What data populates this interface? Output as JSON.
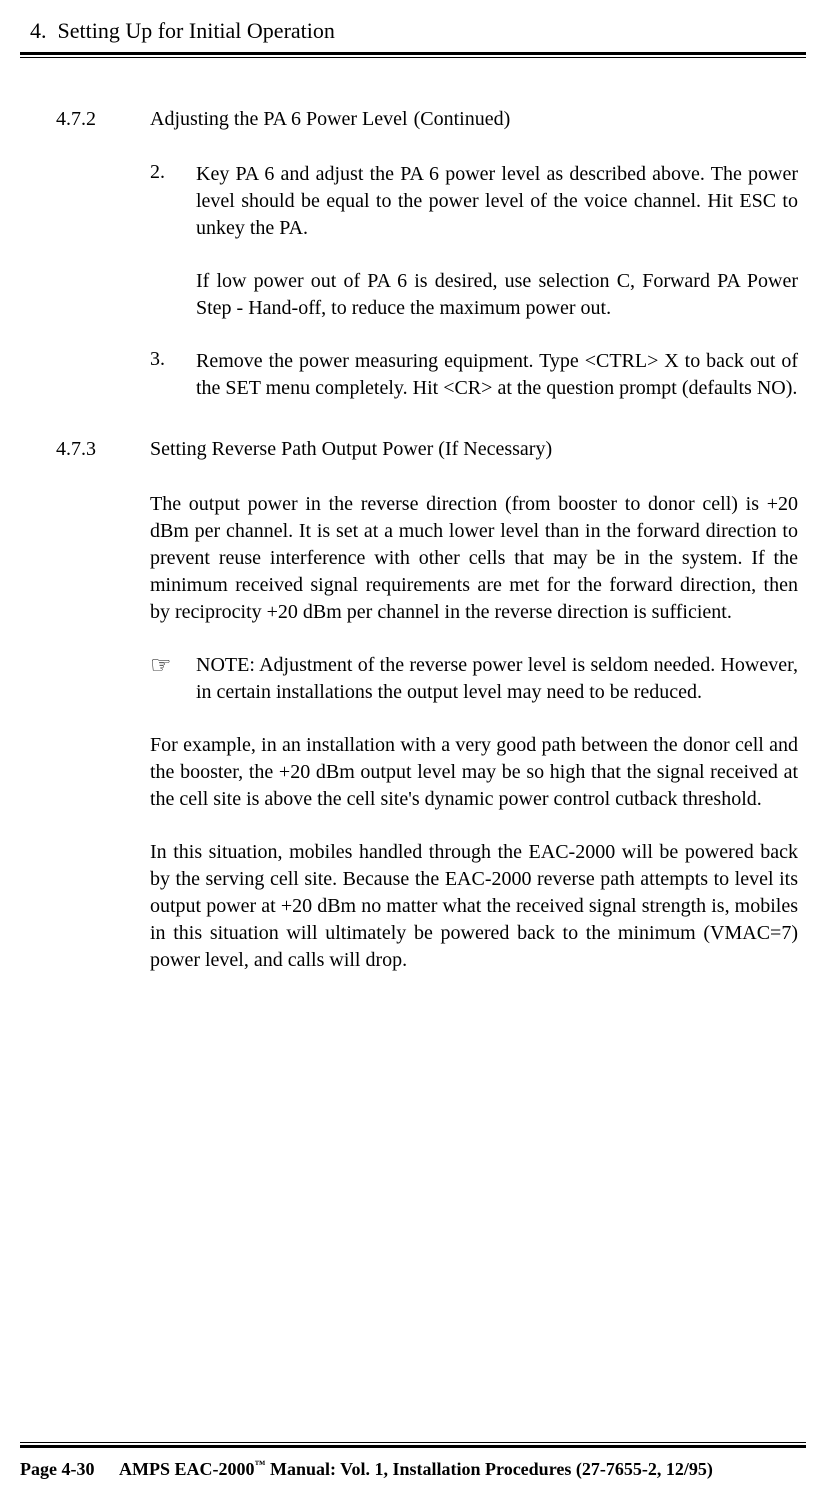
{
  "chapter": {
    "num": "4.",
    "title": "Setting Up for Initial Operation"
  },
  "section_472": {
    "num": "4.7.2",
    "title": "Adjusting the PA 6 Power Level",
    "continued": "(Continued)",
    "items": {
      "2": {
        "num": "2.",
        "p1a": "Key PA 6 and adjust the PA 6 power level as described above. The power level should be equal to the power level of the voice channel.  Hit ",
        "p1_key": "ESC",
        "p1b": " to unkey the PA.",
        "p2a": "If low power out of PA 6 is desired, use selection ",
        "p2_key": "C",
        "p2b": ", Forward PA Power Step - Hand-off, to reduce the maximum power out."
      },
      "3": {
        "num": "3.",
        "p1a": "Remove the power measuring equipment.  Type ",
        "p1_key1": "<CTRL> X",
        "p1b": " to back out of the SET menu completely.  Hit ",
        "p1_key2": "<CR>",
        "p1c": " at the question prompt (defaults NO)."
      }
    }
  },
  "section_473": {
    "num": "4.7.3",
    "title": "Setting Reverse Path Output Power (If Necessary)",
    "p1": "The output power in the reverse direction (from booster to donor cell) is +20 dBm per channel.  It is set at a much lower level than in the forward direction to prevent reuse interference with other cells that may be in the system.  If the minimum received signal requirements are met for the forward direction, then by reciprocity +20 dBm per channel in the reverse direction is sufficient.",
    "note": {
      "icon": "☞",
      "label": "NOTE:",
      "text": "  Adjustment of the reverse power level is seldom needed.  However, in certain installations the output level may need to be reduced."
    },
    "p2": "For example, in an installation with a very good path between the donor cell and the booster, the +20 dBm output level may be so high that the signal received at the cell site is above the cell site's dynamic power control cutback threshold.",
    "p3": "In this situation, mobiles handled through the EAC-2000 will be powered back by the serving cell site.  Because the EAC-2000 reverse path attempts to level its output power at +20 dBm no matter what the received signal strength is, mobiles in this situation will ultimately be powered back to the minimum (VMAC=7) power level, and calls will drop."
  },
  "footer": {
    "page": "Page 4-30",
    "title_a": "AMPS EAC-2000",
    "tm": "™",
    "title_b": " Manual:  Vol. 1, Installation Procedures (27-7655-2, 12/95)"
  }
}
